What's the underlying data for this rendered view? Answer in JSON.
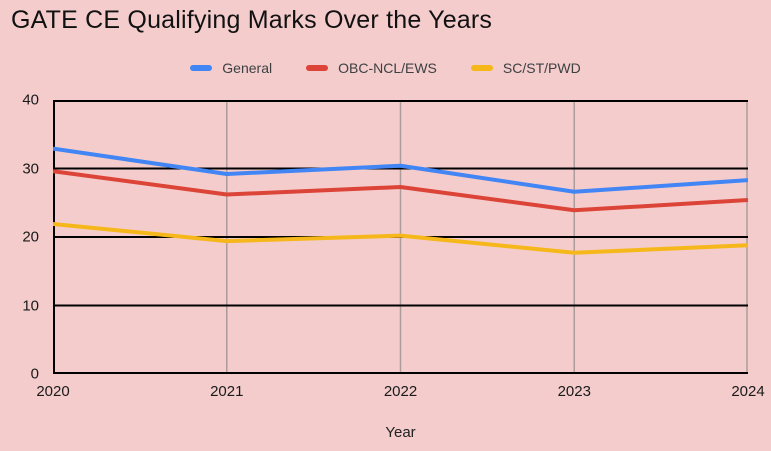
{
  "chart_data": {
    "type": "line",
    "title": "GATE CE Qualifying Marks Over the Years",
    "xlabel": "Year",
    "ylabel": "",
    "categories": [
      "2020",
      "2021",
      "2022",
      "2023",
      "2024"
    ],
    "series": [
      {
        "name": "General",
        "color": "#4285F4",
        "values": [
          32.9,
          29.2,
          30.4,
          26.6,
          28.3
        ]
      },
      {
        "name": "OBC-NCL/EWS",
        "color": "#DB4437",
        "values": [
          29.6,
          26.2,
          27.3,
          23.9,
          25.4
        ]
      },
      {
        "name": "SC/ST/PWD",
        "color": "#F5B719",
        "values": [
          21.9,
          19.4,
          20.2,
          17.7,
          18.8
        ]
      }
    ],
    "ylim": [
      0,
      40
    ],
    "yticks": [
      0,
      10,
      20,
      30,
      40
    ],
    "grid": {
      "horizontal_color": "#000000",
      "vertical_color": "#AD9C9C",
      "axis_color": "#000000"
    },
    "legend_position": "top",
    "background_color": "#F4CCCC",
    "line_width": 4
  }
}
